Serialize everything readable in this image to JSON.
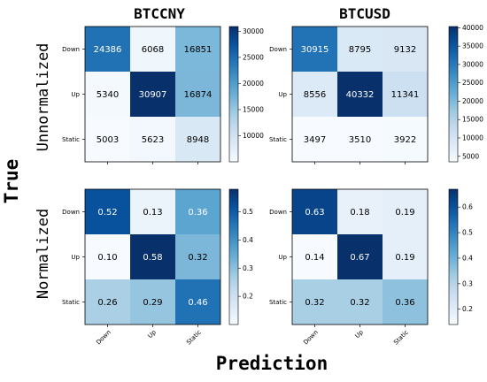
{
  "figure": {
    "col_titles": [
      "BTCCNY",
      "BTCUSD"
    ],
    "row_titles": [
      "Unnormalized",
      "Normalized"
    ],
    "ylabel": "True",
    "xlabel": "Prediction"
  },
  "chart_data": [
    {
      "type": "heatmap",
      "title": "BTCCNY",
      "row_group": "Unnormalized",
      "rows": [
        "Down",
        "Up",
        "Static"
      ],
      "cols": [
        "Down",
        "Up",
        "Static"
      ],
      "values": [
        [
          24386,
          6068,
          16851
        ],
        [
          5340,
          30907,
          16874
        ],
        [
          5003,
          5623,
          8948
        ]
      ],
      "labels": [
        [
          "24386",
          "6068",
          "16851"
        ],
        [
          "5340",
          "30907",
          "16874"
        ],
        [
          "5003",
          "5623",
          "8948"
        ]
      ],
      "vmin": 5003,
      "vmax": 30907,
      "colorbar_ticks": [
        10000,
        15000,
        20000,
        25000,
        30000
      ],
      "colorbar_labels": [
        "10000",
        "15000",
        "20000",
        "25000",
        "30000"
      ],
      "show_xticklabels": false
    },
    {
      "type": "heatmap",
      "title": "BTCUSD",
      "row_group": "Unnormalized",
      "rows": [
        "Down",
        "Up",
        "Static"
      ],
      "cols": [
        "Down",
        "Up",
        "Static"
      ],
      "values": [
        [
          30915,
          8795,
          9132
        ],
        [
          8556,
          40332,
          11341
        ],
        [
          3497,
          3510,
          3922
        ]
      ],
      "labels": [
        [
          "30915",
          "8795",
          "9132"
        ],
        [
          "8556",
          "40332",
          "11341"
        ],
        [
          "3497",
          "3510",
          "3922"
        ]
      ],
      "vmin": 3497,
      "vmax": 40332,
      "colorbar_ticks": [
        5000,
        10000,
        15000,
        20000,
        25000,
        30000,
        35000,
        40000
      ],
      "colorbar_labels": [
        "5000",
        "10000",
        "15000",
        "20000",
        "25000",
        "30000",
        "35000",
        "40000"
      ],
      "show_xticklabels": false
    },
    {
      "type": "heatmap",
      "title": "BTCCNY",
      "row_group": "Normalized",
      "rows": [
        "Down",
        "Up",
        "Static"
      ],
      "cols": [
        "Down",
        "Up",
        "Static"
      ],
      "values": [
        [
          0.52,
          0.13,
          0.36
        ],
        [
          0.1,
          0.58,
          0.32
        ],
        [
          0.26,
          0.29,
          0.46
        ]
      ],
      "labels": [
        [
          "0.52",
          "0.13",
          "0.36"
        ],
        [
          "0.10",
          "0.58",
          "0.32"
        ],
        [
          "0.26",
          "0.29",
          "0.46"
        ]
      ],
      "vmin": 0.1,
      "vmax": 0.58,
      "colorbar_ticks": [
        0.2,
        0.3,
        0.4,
        0.5
      ],
      "colorbar_labels": [
        "0.2",
        "0.3",
        "0.4",
        "0.5"
      ],
      "show_xticklabels": true
    },
    {
      "type": "heatmap",
      "title": "BTCUSD",
      "row_group": "Normalized",
      "rows": [
        "Down",
        "Up",
        "Static"
      ],
      "cols": [
        "Down",
        "Up",
        "Static"
      ],
      "values": [
        [
          0.63,
          0.18,
          0.19
        ],
        [
          0.14,
          0.67,
          0.19
        ],
        [
          0.32,
          0.32,
          0.36
        ]
      ],
      "labels": [
        [
          "0.63",
          "0.18",
          "0.19"
        ],
        [
          "0.14",
          "0.67",
          "0.19"
        ],
        [
          "0.32",
          "0.32",
          "0.36"
        ]
      ],
      "vmin": 0.14,
      "vmax": 0.67,
      "colorbar_ticks": [
        0.2,
        0.3,
        0.4,
        0.5,
        0.6
      ],
      "colorbar_labels": [
        "0.2",
        "0.3",
        "0.4",
        "0.5",
        "0.6"
      ],
      "show_xticklabels": true
    }
  ]
}
